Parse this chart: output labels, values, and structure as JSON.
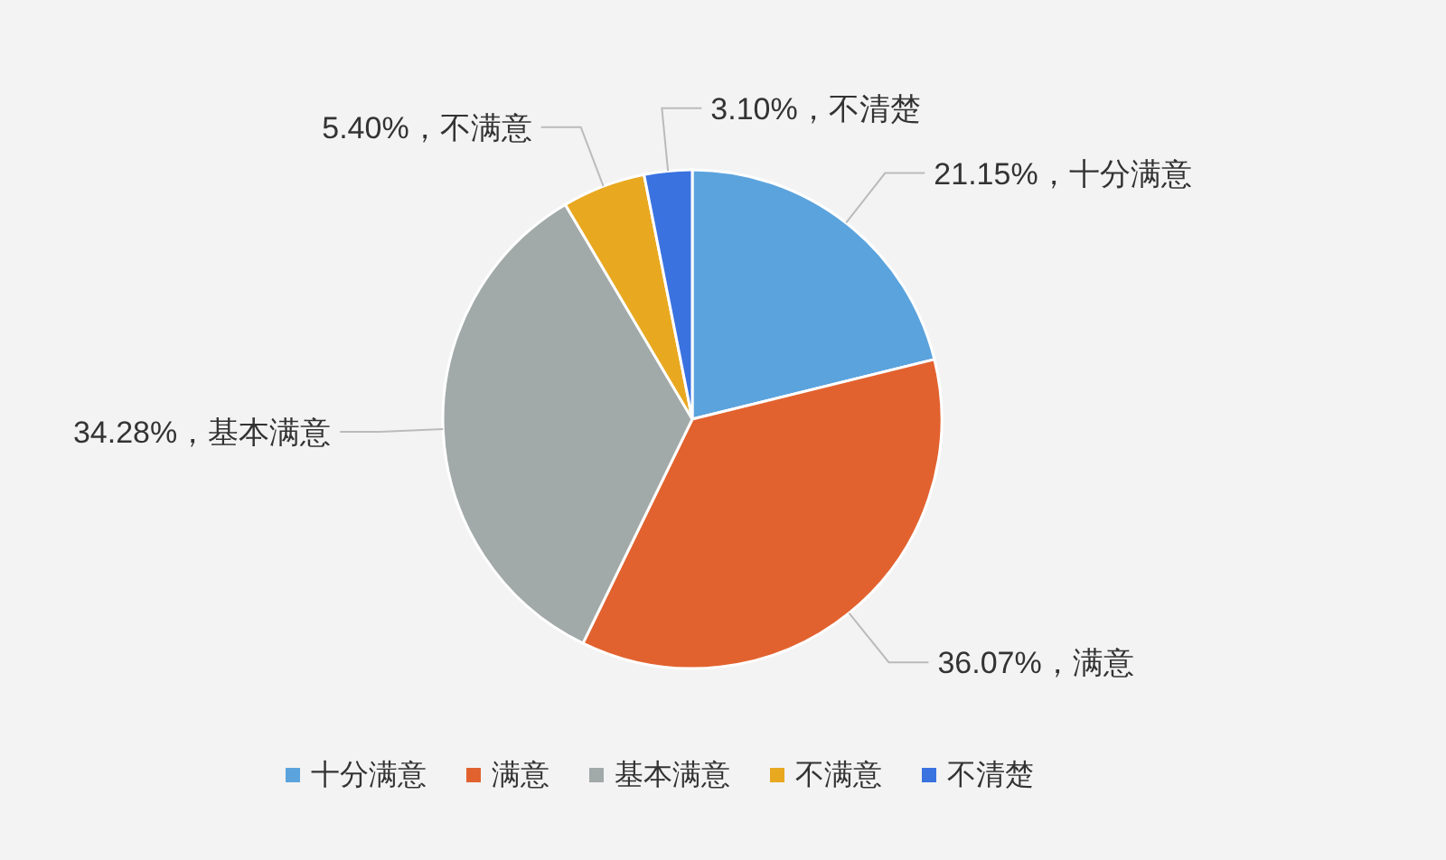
{
  "chart_data": {
    "type": "pie",
    "categories": [
      "十分满意",
      "满意",
      "基本满意",
      "不满意",
      "不清楚"
    ],
    "values": [
      21.15,
      36.07,
      34.28,
      5.4,
      3.1
    ],
    "colors": [
      "#5ba3dd",
      "#e2622f",
      "#a2aaa9",
      "#e8a820",
      "#3a72e0"
    ],
    "value_labels": [
      "21.15%，十分满意",
      "36.07%，满意",
      "34.28%，基本满意",
      "5.40%，不满意",
      "3.10%，不清楚"
    ],
    "legend": "bottom"
  }
}
